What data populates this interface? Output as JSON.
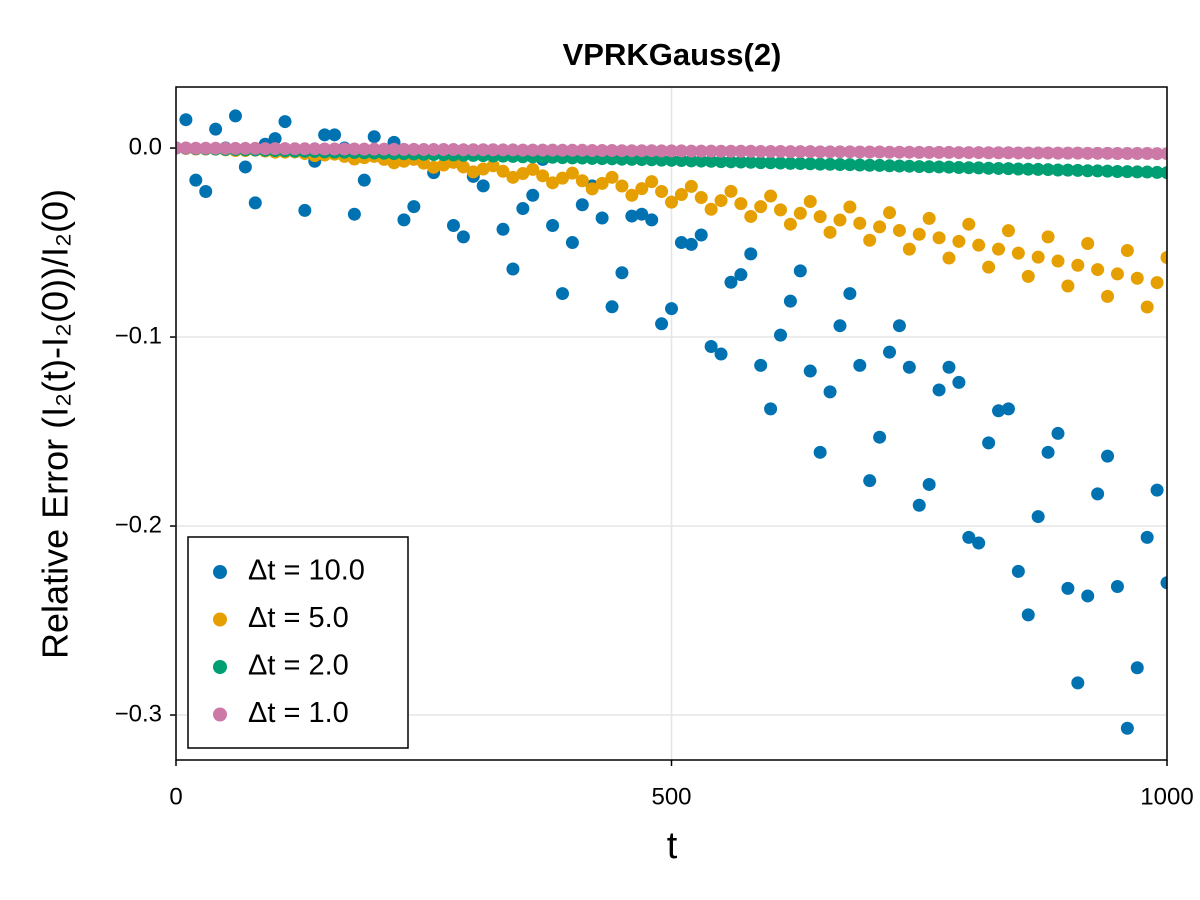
{
  "chart_data": {
    "type": "scatter",
    "title": "VPRKGauss(2)",
    "x_label": "t",
    "y_label": "Relative Error (I₂(t)-I₂(0))/I₂(0)",
    "x": [
      0,
      10,
      20,
      30,
      40,
      50,
      60,
      70,
      80,
      90,
      100,
      110,
      120,
      130,
      140,
      150,
      160,
      170,
      180,
      190,
      200,
      210,
      220,
      230,
      240,
      250,
      260,
      270,
      280,
      290,
      300,
      310,
      320,
      330,
      340,
      350,
      360,
      370,
      380,
      390,
      400,
      410,
      420,
      430,
      440,
      450,
      460,
      470,
      480,
      490,
      500,
      510,
      520,
      530,
      540,
      550,
      560,
      570,
      580,
      590,
      600,
      610,
      620,
      630,
      640,
      650,
      660,
      670,
      680,
      690,
      700,
      710,
      720,
      730,
      740,
      750,
      760,
      770,
      780,
      790,
      800,
      810,
      820,
      830,
      840,
      850,
      860,
      870,
      880,
      890,
      900,
      910,
      920,
      930,
      940,
      950,
      960,
      970,
      980,
      990,
      1000
    ],
    "series": [
      {
        "name": "Δt = 10.0",
        "color": "#0072b2",
        "values": [
          0.0,
          0.015,
          -0.017,
          -0.023,
          0.01,
          0.0,
          0.017,
          -0.01,
          -0.029,
          0.002,
          0.005,
          0.014,
          -0.002,
          -0.033,
          -0.007,
          0.007,
          0.007,
          0,
          -0.035,
          -0.017,
          0.006,
          -0.004,
          0.003,
          -0.038,
          -0.031,
          -0.001,
          -0.013,
          -0.001,
          -0.041,
          -0.047,
          -0.015,
          -0.02,
          -0.001,
          -0.043,
          -0.064,
          -0.032,
          -0.025,
          -0.006,
          -0.041,
          -0.077,
          -0.05,
          -0.03,
          -0.02,
          -0.037,
          -0.084,
          -0.066,
          -0.036,
          -0.035,
          -0.038,
          -0.093,
          -0.085,
          -0.05,
          -0.051,
          -0.046,
          -0.105,
          -0.109,
          -0.071,
          -0.067,
          -0.056,
          -0.115,
          -0.138,
          -0.099,
          -0.081,
          -0.065,
          -0.118,
          -0.161,
          -0.129,
          -0.094,
          -0.077,
          -0.115,
          -0.176,
          -0.153,
          -0.108,
          -0.094,
          -0.116,
          -0.189,
          -0.178,
          -0.128,
          -0.116,
          -0.124,
          -0.206,
          -0.209,
          -0.156,
          -0.139,
          -0.138,
          -0.224,
          -0.247,
          -0.195,
          -0.161,
          -0.151,
          -0.233,
          -0.283,
          -0.237,
          -0.183,
          -0.163,
          -0.232,
          -0.307,
          -0.275,
          -0.206,
          -0.181,
          -0.23
        ]
      },
      {
        "name": "Δt = 5.0",
        "color": "#e69f00",
        "values": [
          0,
          -0.0002,
          -0.0005,
          -0.0005,
          -0.0006,
          -0.0009,
          -0.0013,
          -0.0013,
          -0.0011,
          -0.0016,
          -0.0022,
          -0.0022,
          -0.002,
          -0.0029,
          -0.004,
          -0.0037,
          -0.0032,
          -0.0044,
          -0.0058,
          -0.0051,
          -0.0044,
          -0.006,
          -0.0078,
          -0.007,
          -0.006,
          -0.008,
          -0.0102,
          -0.009,
          -0.0076,
          -0.01,
          -0.0126,
          -0.0111,
          -0.0094,
          -0.0123,
          -0.0155,
          -0.0135,
          -0.0113,
          -0.0147,
          -0.0184,
          -0.0159,
          -0.0133,
          -0.0173,
          -0.0216,
          -0.0187,
          -0.0155,
          -0.0201,
          -0.025,
          -0.0215,
          -0.0178,
          -0.023,
          -0.0286,
          -0.0246,
          -0.0203,
          -0.0262,
          -0.0324,
          -0.0278,
          -0.0229,
          -0.0294,
          -0.0362,
          -0.031,
          -0.0254,
          -0.0327,
          -0.0403,
          -0.0345,
          -0.0283,
          -0.0363,
          -0.0446,
          -0.0381,
          -0.0312,
          -0.0398,
          -0.0488,
          -0.0417,
          -0.0342,
          -0.0436,
          -0.0535,
          -0.0456,
          -0.0372,
          -0.0475,
          -0.0582,
          -0.0494,
          -0.0403,
          -0.0514,
          -0.063,
          -0.0535,
          -0.0437,
          -0.0556,
          -0.0679,
          -0.0577,
          -0.047,
          -0.0598,
          -0.073,
          -0.062,
          -0.0505,
          -0.0643,
          -0.0785,
          -0.0666,
          -0.0542,
          -0.0689,
          -0.0841,
          -0.0712,
          -0.0579
        ]
      },
      {
        "name": "Δt = 2.0",
        "color": "#009e73",
        "values": [
          0,
          -0.0001,
          -0.0003,
          -0.0004,
          -0.0005,
          -0.0007,
          -0.0008,
          -0.0009,
          -0.001,
          -0.0012,
          -0.0013,
          -0.0014,
          -0.0016,
          -0.0017,
          -0.0018,
          -0.002,
          -0.0021,
          -0.0022,
          -0.0023,
          -0.0025,
          -0.0026,
          -0.0027,
          -0.0029,
          -0.003,
          -0.0031,
          -0.0033,
          -0.0034,
          -0.0035,
          -0.0036,
          -0.0038,
          -0.0039,
          -0.004,
          -0.0042,
          -0.0043,
          -0.0044,
          -0.0046,
          -0.0047,
          -0.0048,
          -0.0049,
          -0.0051,
          -0.0052,
          -0.0053,
          -0.0055,
          -0.0056,
          -0.0057,
          -0.0059,
          -0.006,
          -0.0061,
          -0.0062,
          -0.0064,
          -0.0065,
          -0.0066,
          -0.0068,
          -0.0069,
          -0.007,
          -0.0072,
          -0.0073,
          -0.0074,
          -0.0075,
          -0.0077,
          -0.0078,
          -0.0079,
          -0.0081,
          -0.0082,
          -0.0083,
          -0.0085,
          -0.0086,
          -0.0087,
          -0.0088,
          -0.009,
          -0.0091,
          -0.0092,
          -0.0094,
          -0.0095,
          -0.0096,
          -0.0098,
          -0.0099,
          -0.01,
          -0.0101,
          -0.0103,
          -0.0104,
          -0.0105,
          -0.0107,
          -0.0108,
          -0.0109,
          -0.0111,
          -0.0112,
          -0.0113,
          -0.0114,
          -0.0116,
          -0.0117,
          -0.0118,
          -0.012,
          -0.0121,
          -0.0122,
          -0.0124,
          -0.0125,
          -0.0126,
          -0.0127,
          -0.0129,
          -0.013
        ]
      },
      {
        "name": "Δt = 1.0",
        "color": "#cc79a7",
        "values": [
          0,
          0,
          -0.0001,
          -0.0001,
          -0.0001,
          -0.0002,
          -0.0002,
          -0.0002,
          -0.0002,
          -0.0003,
          -0.0003,
          -0.0003,
          -0.0004,
          -0.0004,
          -0.0004,
          -0.0005,
          -0.0005,
          -0.0005,
          -0.0005,
          -0.0006,
          -0.0006,
          -0.0006,
          -0.0007,
          -0.0007,
          -0.0007,
          -0.0008,
          -0.0008,
          -0.0008,
          -0.0008,
          -0.0009,
          -0.0009,
          -0.0009,
          -0.001,
          -0.001,
          -0.001,
          -0.0011,
          -0.0011,
          -0.0011,
          -0.0011,
          -0.0012,
          -0.0012,
          -0.0012,
          -0.0013,
          -0.0013,
          -0.0013,
          -0.0014,
          -0.0014,
          -0.0014,
          -0.0014,
          -0.0015,
          -0.0015,
          -0.0015,
          -0.0016,
          -0.0016,
          -0.0016,
          -0.0017,
          -0.0017,
          -0.0017,
          -0.0017,
          -0.0018,
          -0.0018,
          -0.0018,
          -0.0019,
          -0.0019,
          -0.0019,
          -0.002,
          -0.002,
          -0.002,
          -0.002,
          -0.0021,
          -0.0021,
          -0.0021,
          -0.0022,
          -0.0022,
          -0.0022,
          -0.0023,
          -0.0023,
          -0.0023,
          -0.0023,
          -0.0024,
          -0.0024,
          -0.0024,
          -0.0025,
          -0.0025,
          -0.0025,
          -0.0026,
          -0.0026,
          -0.0026,
          -0.0026,
          -0.0027,
          -0.0027,
          -0.0027,
          -0.0028,
          -0.0028,
          -0.0028,
          -0.0029,
          -0.0029,
          -0.0029,
          -0.0029,
          -0.003,
          -0.003
        ]
      }
    ],
    "xlim": [
      0,
      1000
    ],
    "ylim": [
      -0.3238,
      0.0323
    ],
    "xticks": [
      0,
      500,
      1000
    ],
    "yticks": [
      {
        "value": 0,
        "label": "0.0"
      },
      {
        "value": -0.1,
        "label": "−0.1"
      },
      {
        "value": -0.2,
        "label": "−0.2"
      },
      {
        "value": -0.3,
        "label": "−0.3"
      }
    ],
    "grid": true,
    "legend": "lower left"
  }
}
